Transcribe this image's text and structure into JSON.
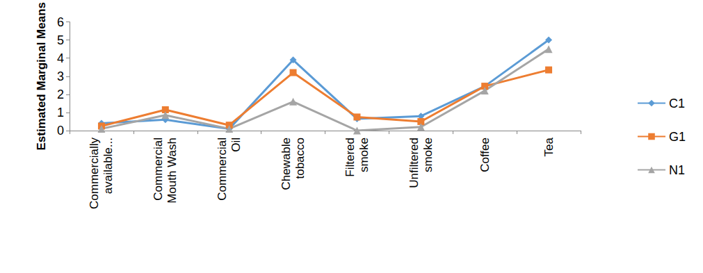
{
  "chart_data": {
    "type": "line",
    "y_label": "Estimated Marginal Means",
    "categories": [
      "Commercially available...",
      "Commercial Mouth Wash",
      "Commercial Oil",
      "Chewable tobacco",
      "Filtered smoke",
      "Unfiltered smoke",
      "Coffee",
      "Tea"
    ],
    "series": [
      {
        "name": "C1",
        "color": "#5b9bd5",
        "marker": "diamond",
        "values": [
          0.4,
          0.6,
          0.1,
          3.9,
          0.65,
          0.8,
          2.45,
          5.0
        ]
      },
      {
        "name": "G1",
        "color": "#ed7d31",
        "marker": "square",
        "values": [
          0.25,
          1.15,
          0.3,
          3.2,
          0.75,
          0.5,
          2.45,
          3.35
        ]
      },
      {
        "name": "N1",
        "color": "#a5a5a5",
        "marker": "triangle",
        "values": [
          0.1,
          0.85,
          0.1,
          1.6,
          0.0,
          0.2,
          2.2,
          4.5
        ]
      }
    ],
    "ylim": [
      0,
      6
    ],
    "yticks": [
      0,
      1,
      2,
      3,
      4,
      5,
      6
    ],
    "grid": false,
    "legend": "right"
  }
}
